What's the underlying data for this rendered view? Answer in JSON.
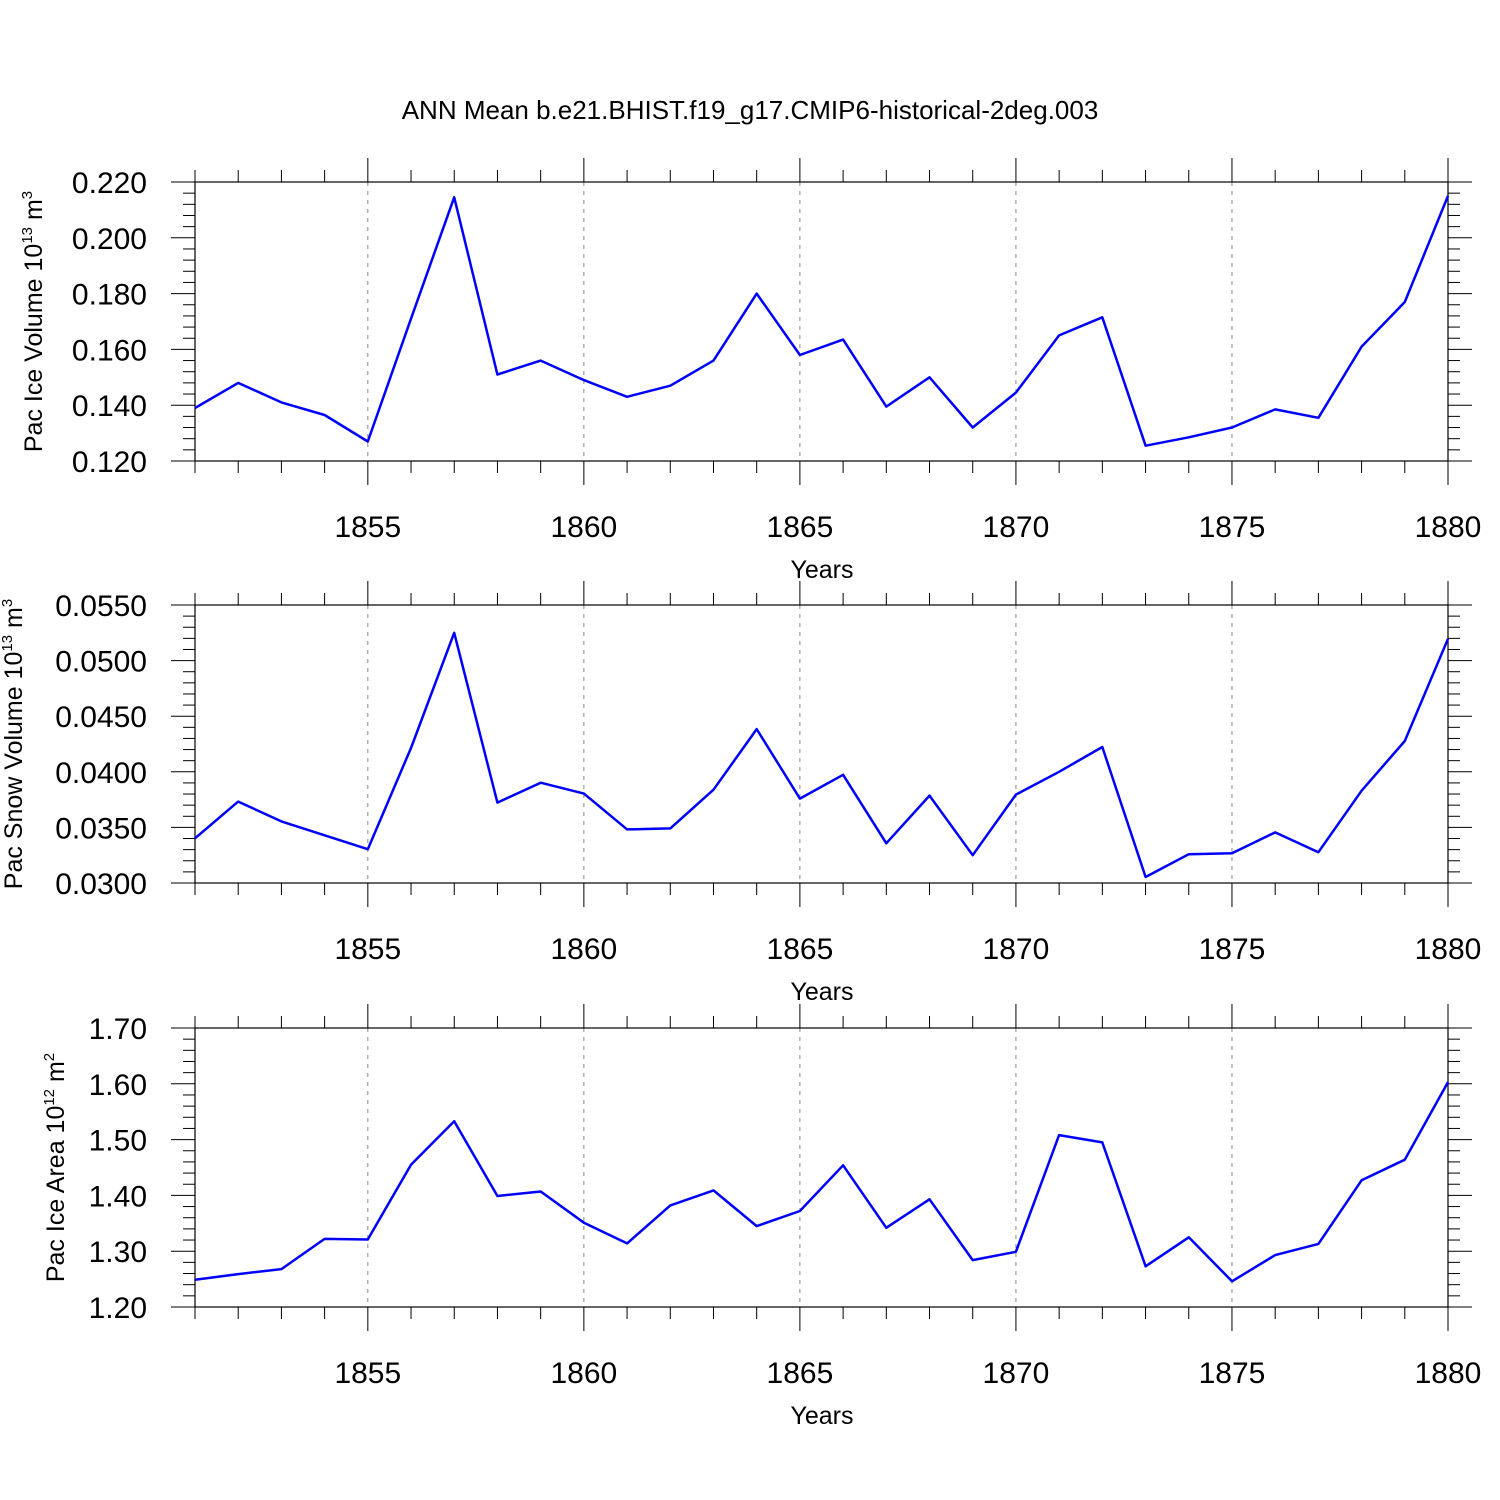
{
  "page_title": "ANN Mean b.e21.BHIST.f19_g17.CMIP6-historical-2deg.003",
  "colors": {
    "line": "#0000ff",
    "axis": "#000000",
    "grid": "#888888",
    "background": "#ffffff"
  },
  "chart_data": [
    {
      "type": "line",
      "xlabel": "Years",
      "ylabel": {
        "main": "Pac Ice Volume 10",
        "exp": "13",
        "unit": " m",
        "unit_exp": "3"
      },
      "xlim": [
        1851,
        1880
      ],
      "ylim": [
        0.12,
        0.22
      ],
      "x_ticks": [
        "1855",
        "1860",
        "1865",
        "1870",
        "1875",
        "1880"
      ],
      "y_ticks": [
        "0.120",
        "0.140",
        "0.160",
        "0.180",
        "0.200",
        "0.220"
      ],
      "grid": "vertical dashed at major x ticks",
      "x": [
        1851,
        1852,
        1853,
        1854,
        1855,
        1856,
        1857,
        1858,
        1859,
        1860,
        1861,
        1862,
        1863,
        1864,
        1865,
        1866,
        1867,
        1868,
        1869,
        1870,
        1871,
        1872,
        1873,
        1874,
        1875,
        1876,
        1877,
        1878,
        1879,
        1880
      ],
      "values": [
        0.139,
        0.148,
        0.141,
        0.1365,
        0.127,
        0.171,
        0.2145,
        0.151,
        0.156,
        0.149,
        0.143,
        0.147,
        0.156,
        0.18,
        0.158,
        0.1635,
        0.1395,
        0.15,
        0.132,
        0.1445,
        0.165,
        0.1715,
        0.1255,
        0.1285,
        0.132,
        0.1385,
        0.1355,
        0.161,
        0.177,
        0.215
      ]
    },
    {
      "type": "line",
      "xlabel": "Years",
      "ylabel": {
        "main": "Pac Snow Volume 10",
        "exp": "13",
        "unit": " m",
        "unit_exp": "3"
      },
      "xlim": [
        1851,
        1880
      ],
      "ylim": [
        0.028,
        0.056
      ],
      "x_ticks": [
        "1855",
        "1860",
        "1865",
        "1870",
        "1875",
        "1880"
      ],
      "y_ticks": [
        "0.0300",
        "0.0350",
        "0.0400",
        "0.0450",
        "0.0500",
        "0.0550"
      ],
      "grid": "vertical dashed at major x ticks",
      "x": [
        1851,
        1852,
        1853,
        1854,
        1855,
        1856,
        1857,
        1858,
        1859,
        1860,
        1861,
        1862,
        1863,
        1864,
        1865,
        1866,
        1867,
        1868,
        1869,
        1870,
        1871,
        1872,
        1873,
        1874,
        1875,
        1876,
        1877,
        1878,
        1879,
        1880
      ],
      "values": [
        0.0325,
        0.0362,
        0.0342,
        0.0328,
        0.0314,
        0.0416,
        0.0532,
        0.0361,
        0.0381,
        0.037,
        0.0334,
        0.0335,
        0.0374,
        0.0435,
        0.0365,
        0.0389,
        0.032,
        0.0368,
        0.0308,
        0.0369,
        0.0392,
        0.0417,
        0.0286,
        0.0309,
        0.031,
        0.0331,
        0.0311,
        0.0373,
        0.0423,
        0.0526
      ]
    },
    {
      "type": "line",
      "xlabel": "Years",
      "ylabel": {
        "main": "Pac Ice Area 10",
        "exp": "12",
        "unit": " m",
        "unit_exp": "2"
      },
      "xlim": [
        1851,
        1880
      ],
      "ylim": [
        1.2,
        1.7
      ],
      "x_ticks": [
        "1855",
        "1860",
        "1865",
        "1870",
        "1875",
        "1880"
      ],
      "y_ticks": [
        "1.20",
        "1.30",
        "1.40",
        "1.50",
        "1.60",
        "1.70"
      ],
      "grid": "vertical dashed at major x ticks",
      "x": [
        1851,
        1852,
        1853,
        1854,
        1855,
        1856,
        1857,
        1858,
        1859,
        1860,
        1861,
        1862,
        1863,
        1864,
        1865,
        1866,
        1867,
        1868,
        1869,
        1870,
        1871,
        1872,
        1873,
        1874,
        1875,
        1876,
        1877,
        1878,
        1879,
        1880
      ],
      "values": [
        1.249,
        1.259,
        1.268,
        1.322,
        1.321,
        1.455,
        1.533,
        1.399,
        1.407,
        1.351,
        1.314,
        1.382,
        1.409,
        1.345,
        1.372,
        1.454,
        1.342,
        1.393,
        1.284,
        1.299,
        1.508,
        1.495,
        1.273,
        1.325,
        1.246,
        1.293,
        1.313,
        1.427,
        1.464,
        1.603
      ]
    }
  ]
}
